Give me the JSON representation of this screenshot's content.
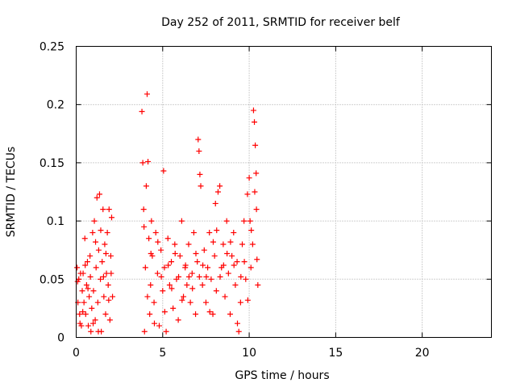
{
  "chart_data": {
    "type": "scatter",
    "title": "Day 252 of 2011, SRMTID for receiver belf",
    "xlabel": "GPS time / hours",
    "ylabel": "SRMTID / TECUs",
    "xlim": [
      0,
      24
    ],
    "ylim": [
      0,
      0.25
    ],
    "x_ticks": [
      0,
      5,
      10,
      15,
      20
    ],
    "y_ticks": [
      0,
      0.05,
      0.1,
      0.15,
      0.2,
      0.25
    ],
    "x_tick_labels": [
      "0",
      "5",
      "10",
      "15",
      "20"
    ],
    "y_tick_labels": [
      "0",
      "0.05",
      "0.1",
      "0.15",
      "0.2",
      "0.25"
    ],
    "grid": true,
    "marker": "+",
    "color": "#ff0000",
    "series": [
      {
        "points": [
          [
            0.05,
            0.06
          ],
          [
            0.1,
            0.03
          ],
          [
            0.15,
            0.05
          ],
          [
            0.2,
            0.02
          ],
          [
            0.25,
            0.055
          ],
          [
            0.3,
            0.01
          ],
          [
            0.35,
            0.04
          ],
          [
            0.4,
            0.055
          ],
          [
            0.45,
            0.03
          ],
          [
            0.5,
            0.085
          ],
          [
            0.55,
            0.02
          ],
          [
            0.6,
            0.045
          ],
          [
            0.65,
            0.065
          ],
          [
            0.7,
            0.01
          ],
          [
            0.75,
            0.035
          ],
          [
            0.8,
            0.07
          ],
          [
            0.85,
            0.005
          ],
          [
            0.9,
            0.025
          ],
          [
            0.95,
            0.09
          ],
          [
            1.0,
            0.04
          ],
          [
            1.05,
            0.1
          ],
          [
            1.1,
            0.015
          ],
          [
            1.15,
            0.06
          ],
          [
            1.2,
            0.12
          ],
          [
            1.25,
            0.03
          ],
          [
            1.3,
            0.075
          ],
          [
            1.35,
            0.123
          ],
          [
            1.4,
            0.05
          ],
          [
            1.45,
            0.005
          ],
          [
            1.5,
            0.065
          ],
          [
            1.55,
            0.11
          ],
          [
            1.6,
            0.035
          ],
          [
            1.65,
            0.08
          ],
          [
            1.7,
            0.02
          ],
          [
            1.75,
            0.055
          ],
          [
            1.8,
            0.09
          ],
          [
            1.85,
            0.045
          ],
          [
            1.9,
            0.11
          ],
          [
            1.95,
            0.015
          ],
          [
            2.0,
            0.07
          ],
          [
            2.05,
            0.103
          ],
          [
            2.1,
            0.035
          ],
          [
            0.08,
            0.048
          ],
          [
            0.22,
            0.012
          ],
          [
            0.38,
            0.022
          ],
          [
            0.52,
            0.062
          ],
          [
            0.68,
            0.042
          ],
          [
            0.82,
            0.052
          ],
          [
            0.98,
            0.012
          ],
          [
            1.12,
            0.082
          ],
          [
            1.28,
            0.005
          ],
          [
            1.42,
            0.092
          ],
          [
            1.58,
            0.052
          ],
          [
            1.72,
            0.072
          ],
          [
            1.88,
            0.032
          ],
          [
            2.02,
            0.055
          ],
          [
            3.8,
            0.194
          ],
          [
            3.85,
            0.15
          ],
          [
            3.9,
            0.11
          ],
          [
            3.95,
            0.005
          ],
          [
            4.0,
            0.06
          ],
          [
            4.05,
            0.13
          ],
          [
            4.1,
            0.209
          ],
          [
            4.15,
            0.151
          ],
          [
            4.2,
            0.085
          ],
          [
            4.25,
            0.02
          ],
          [
            4.3,
            0.045
          ],
          [
            4.35,
            0.1
          ],
          [
            4.4,
            0.07
          ],
          [
            4.5,
            0.03
          ],
          [
            4.6,
            0.09
          ],
          [
            4.7,
            0.055
          ],
          [
            4.8,
            0.01
          ],
          [
            4.9,
            0.075
          ],
          [
            5.0,
            0.04
          ],
          [
            5.05,
            0.143
          ],
          [
            5.1,
            0.06
          ],
          [
            5.2,
            0.005
          ],
          [
            5.3,
            0.085
          ],
          [
            5.4,
            0.045
          ],
          [
            5.5,
            0.065
          ],
          [
            5.6,
            0.025
          ],
          [
            5.7,
            0.08
          ],
          [
            5.8,
            0.05
          ],
          [
            5.9,
            0.015
          ],
          [
            6.0,
            0.07
          ],
          [
            6.1,
            0.1
          ],
          [
            6.2,
            0.035
          ],
          [
            6.3,
            0.06
          ],
          [
            6.4,
            0.045
          ],
          [
            6.5,
            0.08
          ],
          [
            6.6,
            0.03
          ],
          [
            6.7,
            0.055
          ],
          [
            6.8,
            0.09
          ],
          [
            6.9,
            0.02
          ],
          [
            7.0,
            0.065
          ],
          [
            7.05,
            0.17
          ],
          [
            7.1,
            0.16
          ],
          [
            7.15,
            0.14
          ],
          [
            7.2,
            0.13
          ],
          [
            7.3,
            0.045
          ],
          [
            7.4,
            0.075
          ],
          [
            7.5,
            0.03
          ],
          [
            7.6,
            0.06
          ],
          [
            7.7,
            0.09
          ],
          [
            7.8,
            0.05
          ],
          [
            7.9,
            0.02
          ],
          [
            8.0,
            0.07
          ],
          [
            8.05,
            0.115
          ],
          [
            8.1,
            0.04
          ],
          [
            8.2,
            0.125
          ],
          [
            8.3,
            0.13
          ],
          [
            8.4,
            0.06
          ],
          [
            8.5,
            0.08
          ],
          [
            8.6,
            0.035
          ],
          [
            8.7,
            0.1
          ],
          [
            8.8,
            0.055
          ],
          [
            8.9,
            0.02
          ],
          [
            9.0,
            0.07
          ],
          [
            9.1,
            0.09
          ],
          [
            9.2,
            0.045
          ],
          [
            9.3,
            0.065
          ],
          [
            9.4,
            0.005
          ],
          [
            9.5,
            0.03
          ],
          [
            9.6,
            0.08
          ],
          [
            9.7,
            0.1
          ],
          [
            9.8,
            0.05
          ],
          [
            9.9,
            0.123
          ],
          [
            10.0,
            0.137
          ],
          [
            10.05,
            0.1
          ],
          [
            10.1,
            0.06
          ],
          [
            10.2,
            0.08
          ],
          [
            10.25,
            0.195
          ],
          [
            10.3,
            0.185
          ],
          [
            10.35,
            0.165
          ],
          [
            10.4,
            0.141
          ],
          [
            10.45,
            0.067
          ],
          [
            10.5,
            0.045
          ],
          [
            3.92,
            0.095
          ],
          [
            4.12,
            0.035
          ],
          [
            4.32,
            0.072
          ],
          [
            4.52,
            0.012
          ],
          [
            4.72,
            0.082
          ],
          [
            4.92,
            0.052
          ],
          [
            5.12,
            0.022
          ],
          [
            5.32,
            0.062
          ],
          [
            5.52,
            0.042
          ],
          [
            5.72,
            0.072
          ],
          [
            5.92,
            0.052
          ],
          [
            6.12,
            0.032
          ],
          [
            6.32,
            0.062
          ],
          [
            6.52,
            0.052
          ],
          [
            6.72,
            0.042
          ],
          [
            6.92,
            0.072
          ],
          [
            7.12,
            0.052
          ],
          [
            7.32,
            0.062
          ],
          [
            7.52,
            0.052
          ],
          [
            7.72,
            0.022
          ],
          [
            7.92,
            0.082
          ],
          [
            8.12,
            0.092
          ],
          [
            8.32,
            0.052
          ],
          [
            8.52,
            0.062
          ],
          [
            8.72,
            0.072
          ],
          [
            8.92,
            0.082
          ],
          [
            9.12,
            0.062
          ],
          [
            9.32,
            0.012
          ],
          [
            9.52,
            0.052
          ],
          [
            9.72,
            0.065
          ],
          [
            9.92,
            0.032
          ],
          [
            10.12,
            0.092
          ],
          [
            10.32,
            0.125
          ],
          [
            10.42,
            0.11
          ]
        ]
      }
    ]
  }
}
